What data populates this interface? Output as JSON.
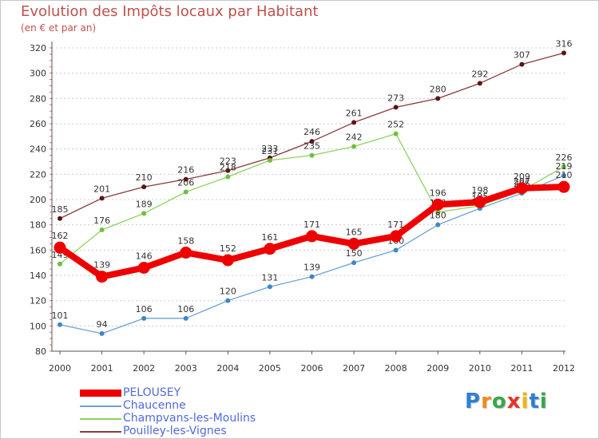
{
  "title": "Evolution des Impôts locaux par Habitant",
  "subtitle": "(en € et par an)",
  "logo": {
    "letters": [
      "P",
      "r",
      "o",
      "x",
      "i",
      "t",
      "i"
    ],
    "colors": [
      "#2f7fd1",
      "#f28a1e",
      "#37a84a",
      "#e8322a",
      "#f6b400",
      "#2f7fd1",
      "#37a84a"
    ]
  },
  "chart_data": {
    "type": "line",
    "title": "Evolution des Impôts locaux par Habitant",
    "subtitle": "(en € et par an)",
    "xlabel": "",
    "ylabel": "",
    "ylim": [
      80,
      320
    ],
    "yticks": [
      80,
      100,
      120,
      140,
      160,
      180,
      200,
      220,
      240,
      260,
      280,
      300,
      320
    ],
    "categories": [
      "2000",
      "2001",
      "2002",
      "2003",
      "2004",
      "2005",
      "2006",
      "2007",
      "2008",
      "2009",
      "2010",
      "2011",
      "2012"
    ],
    "grid": "horizontal dashed",
    "legend_position": "bottom-left",
    "series": [
      {
        "name": "Pouilley-les-Vignes",
        "color": "#8b3a3a",
        "marker": "#5a1515",
        "style": "thin",
        "values": [
          185,
          201,
          210,
          216,
          223,
          233,
          246,
          261,
          273,
          280,
          292,
          307,
          316
        ],
        "labels": [
          "185",
          "201",
          "210",
          "216",
          "223",
          "233",
          "246",
          "261",
          "273",
          "280",
          "292",
          "307",
          "316"
        ]
      },
      {
        "name": "Champvans-les-Moulins",
        "color": "#8ed35f",
        "marker": "#6cc13c",
        "style": "thin",
        "values": [
          149,
          176,
          189,
          206,
          218,
          231,
          235,
          242,
          252,
          190,
          195,
          207,
          226
        ],
        "labels": [
          "149",
          "176",
          "189",
          "206",
          "218",
          "231",
          "235",
          "242",
          "252",
          "190",
          "195",
          "207",
          "226"
        ]
      },
      {
        "name": "Chaucenne",
        "color": "#6aa3d6",
        "marker": "#3e86c9",
        "style": "thin",
        "values": [
          101,
          94,
          106,
          106,
          120,
          131,
          139,
          150,
          160,
          180,
          193,
          205,
          219
        ],
        "labels": [
          "101",
          "94",
          "106",
          "106",
          "120",
          "131",
          "139",
          "150",
          "160",
          "180",
          "193",
          "205",
          "219"
        ]
      },
      {
        "name": "PELOUSEY",
        "color": "#ee0000",
        "marker": "#ee0000",
        "style": "thick",
        "values": [
          162,
          139,
          146,
          158,
          152,
          161,
          171,
          165,
          171,
          196,
          198,
          209,
          210
        ],
        "labels": [
          "162",
          "139",
          "146",
          "158",
          "152",
          "161",
          "171",
          "165",
          "171",
          "196",
          "198",
          "209",
          "210"
        ]
      }
    ]
  }
}
